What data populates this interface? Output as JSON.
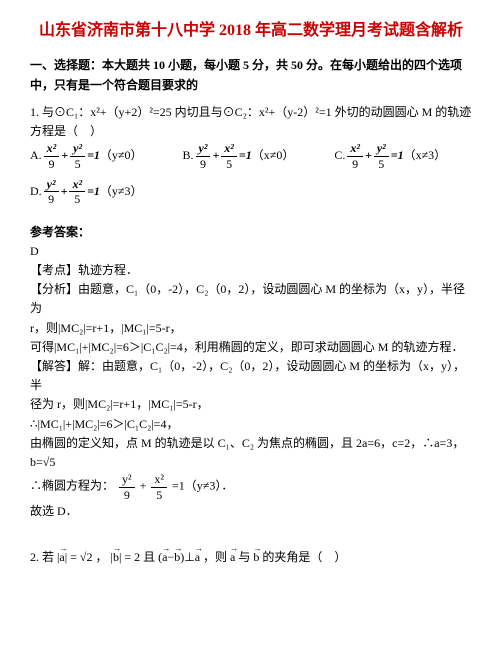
{
  "title": "山东省济南市第十八中学 2018 年高二数学理月考试题含解析",
  "section1": {
    "header": "一、选择题：本大题共 10 小题，每小题 5 分，共 50 分。在每小题给出的四个选项中，只有是一个符合题目要求的"
  },
  "q1": {
    "stem_prefix": "1. 与⊙C₁：x²+（y+2）²=25 内切且与⊙C₂：x²+（y-2）²=1 外切的动圆圆心 M 的轨迹方程是（　）",
    "optA_label": "A.",
    "optA_cond": "（y≠0）",
    "optB_label": "B.",
    "optB_cond": "（x≠0）",
    "optC_label": "C.",
    "optC_cond": "（x≠3）",
    "optD_label": "D.",
    "optD_cond": "（y≠3）",
    "frac_x2": "x²",
    "frac_y2": "y²",
    "frac_9": "9",
    "frac_5": "5",
    "eq_rhs": "=1",
    "plus": "+",
    "answer_label": "参考答案：",
    "answer": "D",
    "point_label": "【考点】轨迹方程．",
    "analysis_label": "【分析】由题意，C₁（0，-2），C₂（0，2），设动圆圆心 M 的坐标为（x，y），半径为",
    "analysis_line2": "r，则|MC₂|=r+1，|MC₁|=5-r，",
    "analysis_line3": "可得|MC₁|+|MC₂|=6＞|C₁C₂|=4，利用椭圆的定义，即可求动圆圆心 M 的轨迹方程．",
    "solve_label": "【解答】解：由题意，C₁（0，-2），C₂（0，2），设动圆圆心 M 的坐标为（x，y），半",
    "solve_line2": "径为 r，则|MC₂|=r+1，|MC₁|=5-r，",
    "solve_line3": "∴|MC₁|+|MC₂|=6＞|C₁C₂|=4，",
    "solve_line4": "由椭圆的定义知，点 M 的轨迹是以 C₁、C₂ 为焦点的椭圆，且 2a=6，c=2，∴a=3，",
    "solve_b": "b=√5",
    "solve_conclusion_prefix": "∴椭圆方程为：",
    "solve_conclusion_cond": "=1（y≠3）．",
    "solve_pick": "故选 D．"
  },
  "q2": {
    "stem_prefix": "2. 若",
    "a_mag": "|a|=√2",
    "comma1": "，",
    "b_mag": "|b|=2",
    "and": " 且 ",
    "perp": "(a−b)⊥a",
    "then": "，则 a 与 b 的夹角是（　）"
  },
  "colors": {
    "title": "#cc0000",
    "text": "#000000",
    "bg": "#ffffff"
  }
}
